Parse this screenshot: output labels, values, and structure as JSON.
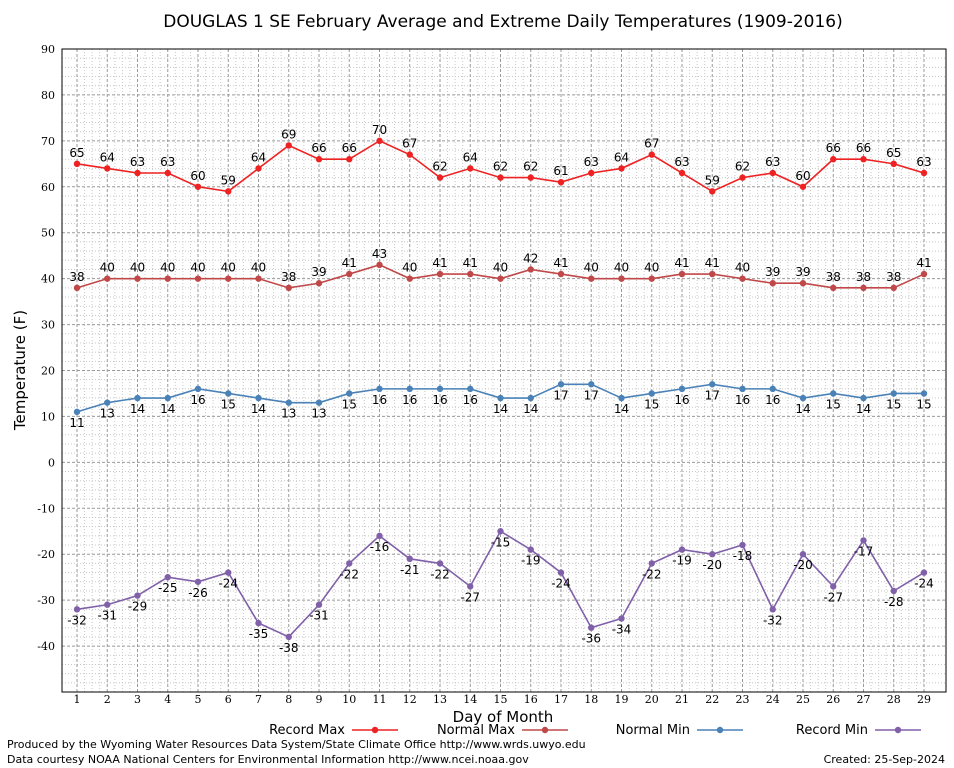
{
  "chart_data": {
    "type": "line",
    "title": "DOUGLAS 1 SE February Average and Extreme Daily Temperatures (1909-2016)",
    "xlabel": "Day of Month",
    "ylabel": "Temperature (F)",
    "ylim": [
      -50,
      90
    ],
    "yticks": [
      90,
      80,
      70,
      60,
      50,
      40,
      30,
      20,
      10,
      0,
      -10,
      -20,
      -30,
      -40
    ],
    "grid": true,
    "legend_position": "bottom",
    "x": [
      1,
      2,
      3,
      4,
      5,
      6,
      7,
      8,
      9,
      10,
      11,
      12,
      13,
      14,
      15,
      16,
      17,
      18,
      19,
      20,
      21,
      22,
      23,
      24,
      25,
      26,
      27,
      28,
      29
    ],
    "series": [
      {
        "name": "Record Max",
        "color": "#ee2222",
        "label_pos": "above",
        "values": [
          65,
          64,
          63,
          63,
          60,
          59,
          64,
          69,
          66,
          66,
          70,
          67,
          62,
          64,
          62,
          62,
          61,
          63,
          64,
          67,
          63,
          59,
          62,
          63,
          60,
          66,
          66,
          65,
          63
        ]
      },
      {
        "name": "Normal Max",
        "color": "#c04848",
        "label_pos": "above",
        "values": [
          38,
          40,
          40,
          40,
          40,
          40,
          40,
          38,
          39,
          41,
          43,
          40,
          41,
          41,
          40,
          42,
          41,
          40,
          40,
          40,
          41,
          41,
          40,
          39,
          39,
          38,
          38,
          38,
          41
        ]
      },
      {
        "name": "Normal Min",
        "color": "#4a82b8",
        "label_pos": "below",
        "values": [
          11,
          13,
          14,
          14,
          16,
          15,
          14,
          13,
          13,
          15,
          16,
          16,
          16,
          16,
          14,
          14,
          17,
          17,
          14,
          15,
          16,
          17,
          16,
          16,
          14,
          15,
          14,
          15,
          15
        ]
      },
      {
        "name": "Record Min",
        "color": "#8060a8",
        "label_pos": "below",
        "values": [
          -32,
          -31,
          -29,
          -25,
          -26,
          -24,
          -35,
          -38,
          -31,
          -22,
          -16,
          -21,
          -22,
          -27,
          -15,
          -19,
          -24,
          -36,
          -34,
          -22,
          -19,
          -20,
          -18,
          -32,
          -20,
          -27,
          -17,
          -28,
          -24
        ]
      }
    ]
  },
  "footer": {
    "produced_by": "Produced by the Wyoming Water Resources Data System/State Climate Office http://www.wrds.uwyo.edu",
    "data_courtesy": "Data courtesy NOAA National Centers for Environmental Information http://www.ncei.noaa.gov",
    "created": "Created: 25-Sep-2024"
  }
}
